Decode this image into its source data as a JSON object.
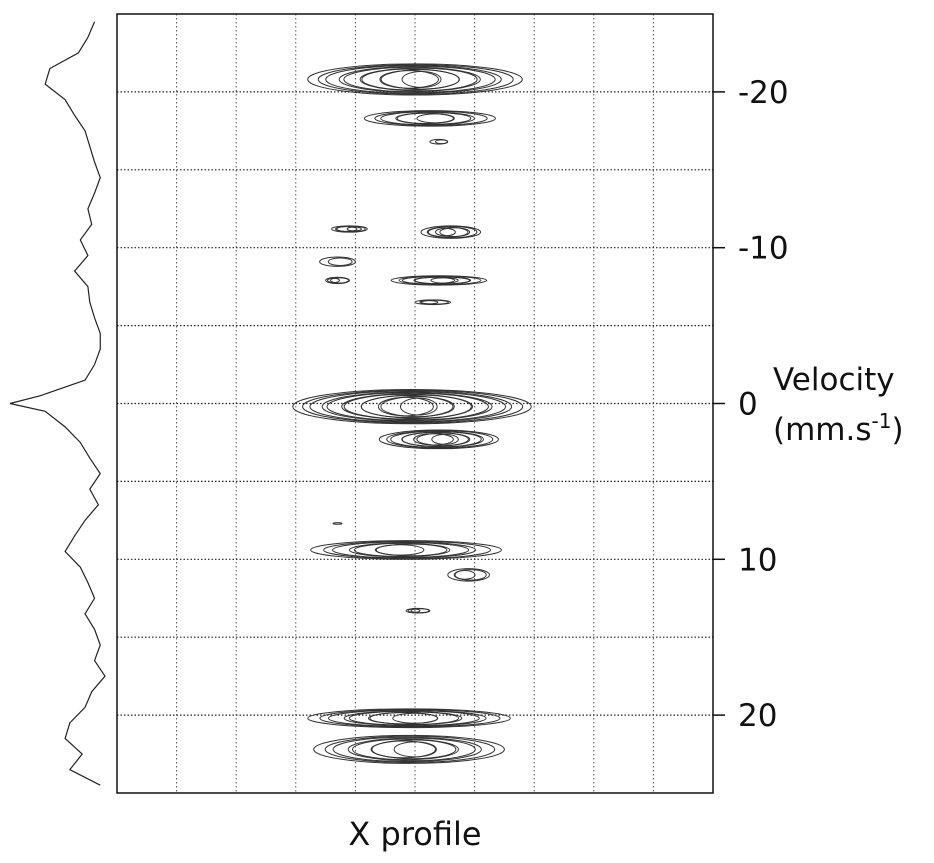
{
  "chart_data": {
    "type": "contour",
    "x_label": "X profile",
    "y_label": {
      "line1": "Velocity",
      "line2": "(mm.s",
      "exponent": "-1",
      "close": ")"
    },
    "xlim": [
      0,
      10
    ],
    "xgrid": [
      1,
      2,
      3,
      4,
      5,
      6,
      7,
      8,
      9
    ],
    "ylim": [
      -25,
      25
    ],
    "yticks": [
      -20,
      -10,
      0,
      10,
      20
    ],
    "ygrid": [
      -20,
      -15,
      -10,
      -5,
      0,
      5,
      10,
      15,
      20
    ],
    "color": "#333333",
    "features": [
      {
        "x": 5.0,
        "y": -20.8,
        "width": 3.6,
        "height": 2.0,
        "levels": 10
      },
      {
        "x": 5.25,
        "y": -18.3,
        "width": 2.2,
        "height": 1.0,
        "levels": 6
      },
      {
        "x": 5.4,
        "y": -16.8,
        "width": 0.3,
        "height": 0.3,
        "levels": 2
      },
      {
        "x": 3.9,
        "y": -11.2,
        "width": 0.6,
        "height": 0.4,
        "levels": 4
      },
      {
        "x": 5.6,
        "y": -11.0,
        "width": 1.0,
        "height": 0.8,
        "levels": 5
      },
      {
        "x": 3.7,
        "y": -9.1,
        "width": 0.6,
        "height": 0.6,
        "levels": 2
      },
      {
        "x": 3.7,
        "y": -7.9,
        "width": 0.4,
        "height": 0.4,
        "levels": 3
      },
      {
        "x": 5.4,
        "y": -7.9,
        "width": 1.6,
        "height": 0.6,
        "levels": 6
      },
      {
        "x": 5.3,
        "y": -6.5,
        "width": 0.6,
        "height": 0.3,
        "levels": 3
      },
      {
        "x": 4.95,
        "y": 0.2,
        "width": 4.0,
        "height": 2.2,
        "levels": 12
      },
      {
        "x": 5.4,
        "y": 2.3,
        "width": 2.0,
        "height": 1.2,
        "levels": 8
      },
      {
        "x": 3.7,
        "y": 7.7,
        "width": 0.15,
        "height": 0.1,
        "levels": 1
      },
      {
        "x": 4.85,
        "y": 9.4,
        "width": 3.2,
        "height": 1.2,
        "levels": 7
      },
      {
        "x": 5.9,
        "y": 11.0,
        "width": 0.7,
        "height": 0.8,
        "levels": 3
      },
      {
        "x": 5.05,
        "y": 13.3,
        "width": 0.4,
        "height": 0.3,
        "levels": 3
      },
      {
        "x": 4.9,
        "y": 20.2,
        "width": 3.4,
        "height": 1.2,
        "levels": 8
      },
      {
        "x": 4.9,
        "y": 22.2,
        "width": 3.2,
        "height": 1.8,
        "levels": 8
      }
    ],
    "profile": {
      "xlim": [
        0,
        100
      ],
      "x": [
        -24.5,
        -23.5,
        -22.5,
        -21.5,
        -20.5,
        -19.5,
        -18.5,
        -17.5,
        -16.5,
        -15.5,
        -14.5,
        -13.5,
        -12.5,
        -11.5,
        -10.5,
        -9.5,
        -8.5,
        -7.5,
        -6.5,
        -5.5,
        -4.5,
        -3.5,
        -2.5,
        -1.5,
        -0.5,
        0,
        0.5,
        1.5,
        2.5,
        3.5,
        4.5,
        5.5,
        6.5,
        7.5,
        8.5,
        9.5,
        10.5,
        11.5,
        12.5,
        13.5,
        14.5,
        15.5,
        16.5,
        17.5,
        18.5,
        19.5,
        20.5,
        21.5,
        22.5,
        23.5,
        24.5
      ],
      "values": [
        89,
        82,
        72,
        42,
        37,
        58,
        68,
        79,
        84,
        89,
        95,
        89,
        82,
        86,
        74,
        82,
        68,
        82,
        84,
        89,
        95,
        95,
        89,
        79,
        32,
        0,
        37,
        58,
        74,
        84,
        95,
        84,
        93,
        79,
        68,
        58,
        74,
        82,
        89,
        79,
        89,
        95,
        89,
        100,
        86,
        79,
        63,
        58,
        76,
        63,
        95
      ]
    }
  }
}
